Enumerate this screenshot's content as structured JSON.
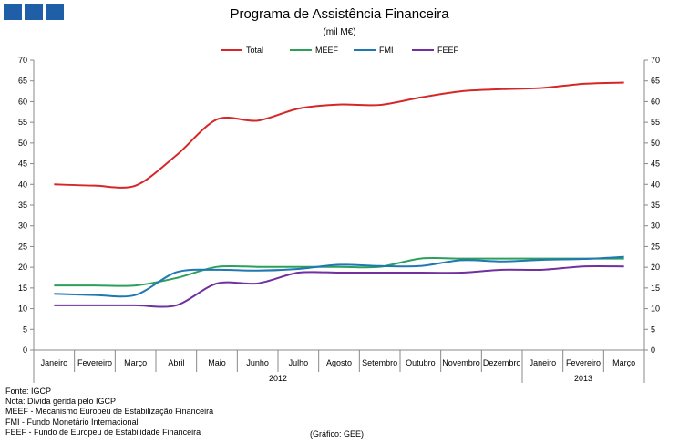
{
  "header": {
    "logo": "logo-squares"
  },
  "chart_data": {
    "type": "line",
    "title": "Programa de Assistência Financeira",
    "subtitle": "(mil M€)",
    "categories": [
      "Janeiro",
      "Fevereiro",
      "Março",
      "Abril",
      "Maio",
      "Junho",
      "Julho",
      "Agosto",
      "Setembro",
      "Outubro",
      "Novembro",
      "Dezembro",
      "Janeiro",
      "Fevereiro",
      "Março"
    ],
    "year_groups": [
      {
        "label": "2012",
        "count": 12
      },
      {
        "label": "2013",
        "count": 3
      }
    ],
    "ylim": [
      0,
      70
    ],
    "yticks": [
      0,
      5,
      10,
      15,
      20,
      25,
      30,
      35,
      40,
      45,
      50,
      55,
      60,
      65,
      70
    ],
    "legend_position": "top",
    "grid": false,
    "series": [
      {
        "name": "Total",
        "color": "#d62728",
        "values": [
          40.0,
          39.7,
          39.7,
          47.0,
          55.7,
          55.4,
          58.3,
          59.3,
          59.2,
          61.0,
          62.5,
          63.0,
          63.3,
          64.3,
          64.6
        ]
      },
      {
        "name": "MEEF",
        "color": "#2ca05a",
        "values": [
          15.6,
          15.6,
          15.6,
          17.4,
          20.1,
          20.1,
          20.1,
          20.1,
          20.1,
          22.1,
          22.1,
          22.1,
          22.1,
          22.1,
          22.1
        ]
      },
      {
        "name": "FMI",
        "color": "#1f77b4",
        "values": [
          13.6,
          13.3,
          13.3,
          18.8,
          19.4,
          19.2,
          19.6,
          20.6,
          20.3,
          20.3,
          21.7,
          21.4,
          21.8,
          22.0,
          22.5
        ]
      },
      {
        "name": "FEEF",
        "color": "#7030a0",
        "values": [
          10.8,
          10.8,
          10.8,
          10.8,
          16.1,
          16.1,
          18.7,
          18.7,
          18.7,
          18.7,
          18.7,
          19.4,
          19.4,
          20.2,
          20.2
        ]
      }
    ]
  },
  "notes": [
    "Fonte: IGCP",
    "Nota: Dívida gerida pelo IGCP",
    "MEEF - Mecanismo Europeu de Estabilização Financeira",
    "FMI - Fundo Monetário Internacional",
    "FEEF - Fundo de Europeu de Estabilidade Financeira"
  ],
  "source_label": "(Gráfico: GEE)"
}
